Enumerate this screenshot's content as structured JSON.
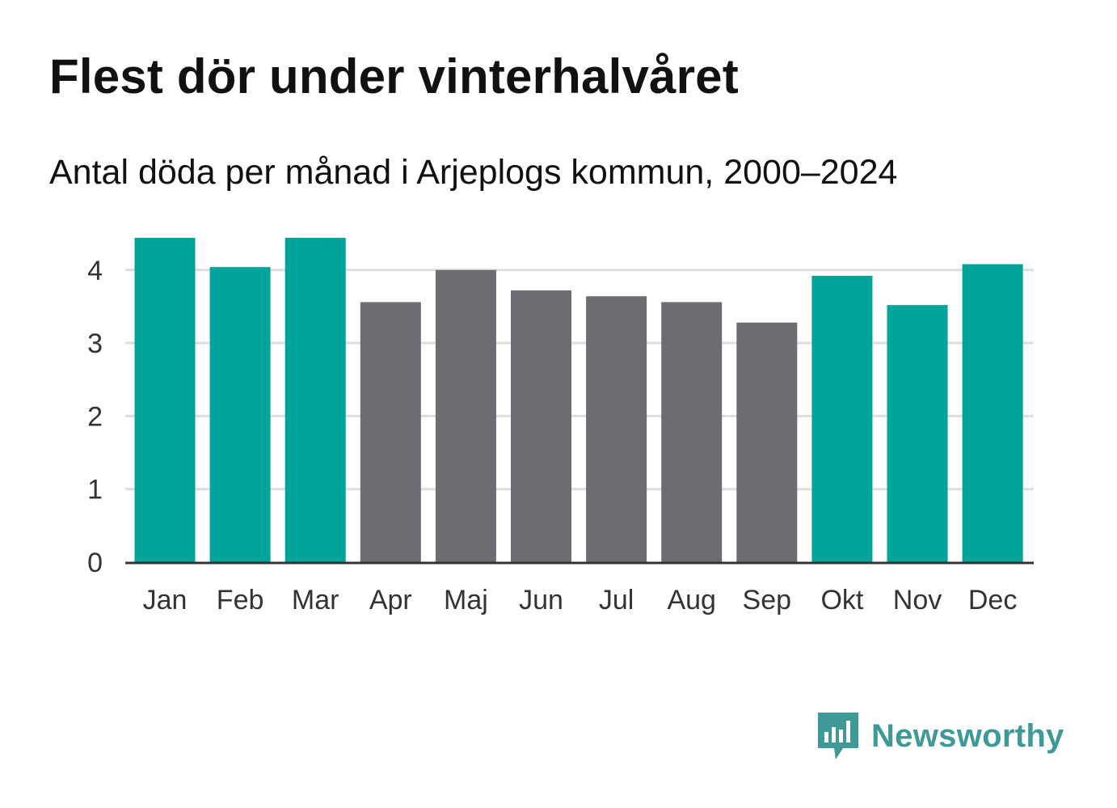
{
  "header": {
    "title": "Flest dör under vinterhalvåret",
    "subtitle": "Antal döda per månad i Arjeplogs kommun, 2000–2024"
  },
  "brand": {
    "name": "Newsworthy",
    "logo_icon": "chat-bar-chart-icon",
    "color": "#3f9a97"
  },
  "colors": {
    "winter": "#00a49a",
    "summer": "#6d6c72",
    "grid": "#dddddd",
    "axis": "#333333"
  },
  "chart_data": {
    "type": "bar",
    "title": "Flest dör under vinterhalvåret",
    "subtitle": "Antal döda per månad i Arjeplogs kommun, 2000–2024",
    "xlabel": "",
    "ylabel": "",
    "ylim": [
      0,
      4.5
    ],
    "yticks": [
      0,
      1,
      2,
      3,
      4
    ],
    "grid": true,
    "categories": [
      "Jan",
      "Feb",
      "Mar",
      "Apr",
      "Maj",
      "Jun",
      "Jul",
      "Aug",
      "Sep",
      "Okt",
      "Nov",
      "Dec"
    ],
    "values": [
      4.44,
      4.04,
      4.44,
      3.56,
      4.0,
      3.72,
      3.64,
      3.56,
      3.28,
      3.92,
      3.52,
      4.08
    ],
    "season": [
      "winter",
      "winter",
      "winter",
      "summer",
      "summer",
      "summer",
      "summer",
      "summer",
      "summer",
      "winter",
      "winter",
      "winter"
    ]
  }
}
